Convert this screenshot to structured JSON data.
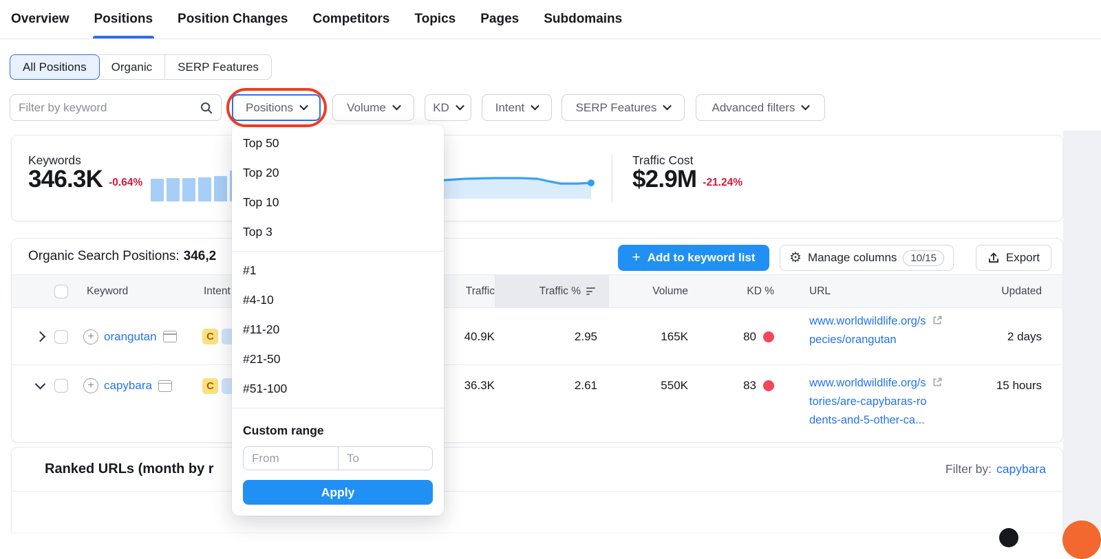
{
  "nav": {
    "tabs": [
      {
        "label": "Overview"
      },
      {
        "label": "Positions"
      },
      {
        "label": "Position Changes"
      },
      {
        "label": "Competitors"
      },
      {
        "label": "Topics"
      },
      {
        "label": "Pages"
      },
      {
        "label": "Subdomains"
      }
    ]
  },
  "segments": {
    "items": [
      {
        "label": "All Positions"
      },
      {
        "label": "Organic"
      },
      {
        "label": "SERP Features"
      }
    ]
  },
  "filters": {
    "keyword_placeholder": "Filter by keyword",
    "positions_label": "Positions",
    "volume_label": "Volume",
    "kd_label": "KD",
    "intent_label": "Intent",
    "serp_label": "SERP Features",
    "advanced_label": "Advanced filters"
  },
  "stats": {
    "keywords": {
      "label": "Keywords",
      "value": "346.3K",
      "change": "-0.64%",
      "bars": [
        33,
        34,
        34,
        35,
        37,
        45
      ]
    },
    "traffic_sparkline": {
      "points": [
        [
          0,
          16
        ],
        [
          20,
          15
        ],
        [
          45,
          13
        ],
        [
          75,
          11
        ],
        [
          115,
          10
        ],
        [
          155,
          10
        ],
        [
          180,
          11
        ],
        [
          198,
          15
        ],
        [
          214,
          18
        ],
        [
          238,
          18
        ],
        [
          258,
          17
        ]
      ],
      "dot": [
        258,
        17
      ]
    },
    "traffic_cost": {
      "label": "Traffic Cost",
      "value": "$2.9M",
      "change": "-21.24%"
    }
  },
  "positions_dropdown": {
    "top_options": [
      "Top 50",
      "Top 20",
      "Top 10",
      "Top 3"
    ],
    "range_options": [
      "#1",
      "#4-10",
      "#11-20",
      "#21-50",
      "#51-100"
    ],
    "custom_range_label": "Custom range",
    "from_placeholder": "From",
    "to_placeholder": "To",
    "apply_label": "Apply"
  },
  "table": {
    "title": "Organic Search Positions:",
    "title_count": "346,2",
    "add_button": "Add to keyword list",
    "manage_button": "Manage columns",
    "manage_badge": "10/15",
    "export_button": "Export",
    "columns": {
      "keyword": "Keyword",
      "intent": "Intent",
      "traffic": "Traffic",
      "traffic_pct": "Traffic %",
      "volume": "Volume",
      "kd": "KD %",
      "url": "URL",
      "updated": "Updated"
    },
    "rows": [
      {
        "keyword": "orangutan",
        "intent": "C",
        "traffic": "40.9K",
        "traffic_pct": "2.95",
        "volume": "165K",
        "kd": "80",
        "url_lines": [
          "www.worldwildlife.org/s",
          "pecies/orangutan"
        ],
        "updated": "2 days"
      },
      {
        "keyword": "capybara",
        "intent": "C",
        "traffic": "36.3K",
        "traffic_pct": "2.61",
        "volume": "550K",
        "kd": "83",
        "url_lines": [
          "www.worldwildlife.org/s",
          "tories/are-capybaras-ro",
          "dents-and-5-other-ca..."
        ],
        "updated": "15 hours"
      }
    ]
  },
  "ranked": {
    "title": "Ranked URLs (month by r",
    "filter_label": "Filter by:",
    "filter_value": "capybara"
  },
  "colors": {
    "primary_blue": "#2190f4",
    "accent_blue": "#2f6df0",
    "link_blue": "#2574e9",
    "negative_red": "#d21b3c",
    "kd_dot_red": "#f4475a",
    "annotation_red": "#ee3c22",
    "intent_c_bg": "#fbe081",
    "intent_c_text": "#9a6700",
    "bar_blue": "#a6cef7",
    "line_blue": "#39a2f4",
    "area_blue": "#d9ecfc"
  }
}
